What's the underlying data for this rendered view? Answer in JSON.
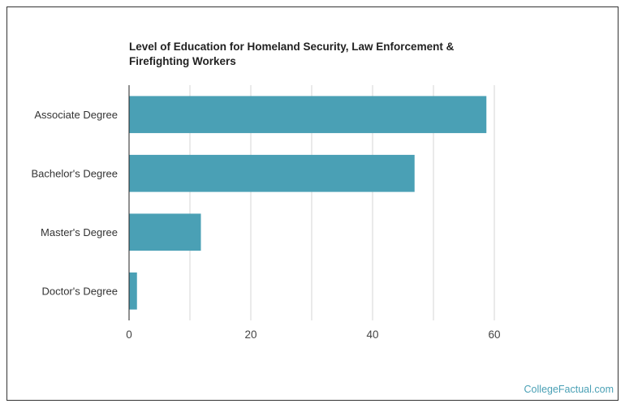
{
  "chart_data": {
    "type": "bar",
    "orientation": "horizontal",
    "title": "Level of Education for Homeland Security, Law Enforcement & Firefighting Workers",
    "categories": [
      "Associate Degree",
      "Bachelor's Degree",
      "Master's Degree",
      "Doctor's Degree"
    ],
    "values": [
      58.7,
      46.9,
      11.8,
      1.3
    ],
    "xlabel": "",
    "ylabel": "",
    "xlim": [
      0,
      60
    ],
    "xticks": [
      0,
      20,
      40,
      60
    ],
    "grid": true,
    "bar_color": "#4aa0b5"
  },
  "credit": "CollegeFactual.com"
}
